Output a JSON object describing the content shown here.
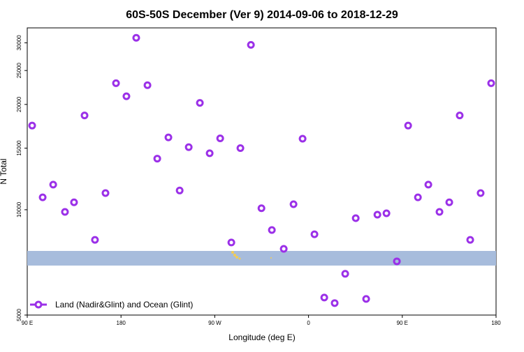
{
  "chart_data": {
    "type": "scatter",
    "title": "60S-50S December (Ver 9)   2014-09-06 to 2018-12-29",
    "x_label": "Longitude (deg E)",
    "y_label": "N Total",
    "xlim": [
      90,
      540
    ],
    "ylim": [
      5000,
      33100
    ],
    "log_y": true,
    "xticks": [
      {
        "value": 90,
        "label": "90 E"
      },
      {
        "value": 180,
        "label": "180"
      },
      {
        "value": 270,
        "label": "90 W"
      },
      {
        "value": 360,
        "label": "0"
      },
      {
        "value": 450,
        "label": "90 E"
      },
      {
        "value": 540,
        "label": "180"
      }
    ],
    "yticks": [
      5000,
      10000,
      15000,
      20000,
      25000,
      30000
    ],
    "legend_position": "lower left",
    "series": [
      {
        "name": "Land (Nadir&Glint) and Ocean (Glint)",
        "color": "#9b30e8",
        "x": [
          94.7,
          104.8,
          114.9,
          126.2,
          134.9,
          145,
          155,
          165.1,
          175.2,
          185.2,
          194.6,
          205.4,
          214.8,
          225.5,
          236.3,
          245,
          255.7,
          265.1,
          275.2,
          285.9,
          294.6,
          304.7,
          314.8,
          324.8,
          336.2,
          345.6,
          354.3,
          365.7,
          375.1,
          385.1,
          395.2,
          405.3,
          415.3,
          426.1,
          434.8,
          444.8,
          455.6,
          465,
          475,
          485.7,
          495.1,
          505.1,
          515.2,
          525.2,
          535.3
        ],
        "values": [
          17400,
          10850,
          11800,
          9860,
          10500,
          18600,
          8200,
          11160,
          23000,
          21100,
          31000,
          22700,
          14000,
          16100,
          11350,
          15100,
          20200,
          14500,
          16000,
          8060,
          15000,
          29600,
          10100,
          8750,
          7730,
          10370,
          15960,
          8510,
          5610,
          5410,
          6560,
          9460,
          5560,
          9680,
          9770,
          7120,
          17400,
          10850,
          11800,
          9860,
          10500,
          18600,
          8200,
          11160,
          23000
        ]
      }
    ]
  }
}
